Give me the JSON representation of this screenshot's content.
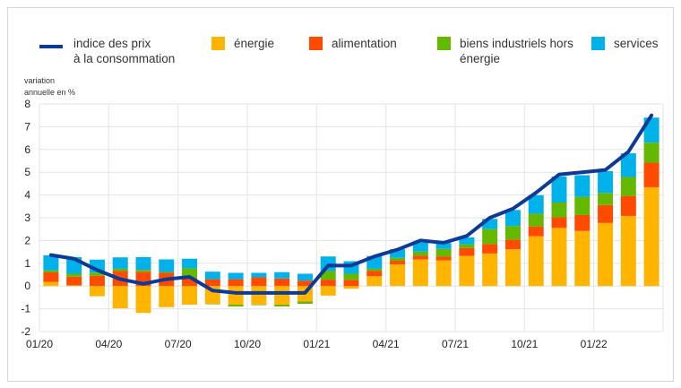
{
  "chart_data": {
    "type": "bar",
    "stacked": true,
    "title": "",
    "xlabel": "",
    "ylabel": "variation annuelle en %",
    "ylabel_lines": [
      "variation",
      "annuelle en %"
    ],
    "ylim": [
      -2,
      8
    ],
    "yticks": [
      -2,
      -1,
      0,
      1,
      2,
      3,
      4,
      5,
      6,
      7,
      8
    ],
    "grid": true,
    "legend_position": "top",
    "categories": [
      "01/20",
      "02/20",
      "03/20",
      "04/20",
      "05/20",
      "06/20",
      "07/20",
      "08/20",
      "09/20",
      "10/20",
      "11/20",
      "12/20",
      "01/21",
      "02/21",
      "03/21",
      "04/21",
      "05/21",
      "06/21",
      "07/21",
      "08/21",
      "09/21",
      "10/21",
      "11/21",
      "12/21",
      "01/22",
      "02/22",
      "03/22"
    ],
    "xtick_labels": [
      "01/20",
      "04/20",
      "07/20",
      "10/20",
      "01/21",
      "04/21",
      "07/21",
      "10/21",
      "01/22"
    ],
    "series": [
      {
        "name": "énergie",
        "color": "#ffb400",
        "values": [
          0.18,
          0.03,
          -0.45,
          -0.98,
          -1.18,
          -0.93,
          -0.82,
          -0.78,
          -0.82,
          -0.82,
          -0.82,
          -0.68,
          -0.42,
          -0.12,
          0.43,
          0.95,
          1.17,
          1.13,
          1.32,
          1.43,
          1.62,
          2.19,
          2.55,
          2.42,
          2.77,
          3.08,
          4.34
        ]
      },
      {
        "name": "alimentation",
        "color": "#ff4b00",
        "values": [
          0.42,
          0.38,
          0.45,
          0.66,
          0.63,
          0.58,
          0.36,
          0.3,
          0.3,
          0.38,
          0.33,
          0.24,
          0.28,
          0.27,
          0.23,
          0.16,
          0.16,
          0.16,
          0.35,
          0.42,
          0.42,
          0.43,
          0.47,
          0.7,
          0.79,
          0.88,
          1.08
        ]
      },
      {
        "name": "biens industriels hors énergie",
        "color": "#65b800",
        "values": [
          0.09,
          0.13,
          0.14,
          0.1,
          0.08,
          0.04,
          0.42,
          -0.02,
          -0.08,
          -0.02,
          -0.08,
          -0.1,
          0.38,
          0.27,
          0.1,
          0.13,
          0.18,
          0.34,
          0.16,
          0.65,
          0.6,
          0.56,
          0.65,
          0.8,
          0.53,
          0.83,
          0.88
        ]
      },
      {
        "name": "services",
        "color": "#00b1ea",
        "values": [
          0.66,
          0.73,
          0.57,
          0.5,
          0.56,
          0.55,
          0.42,
          0.33,
          0.28,
          0.2,
          0.28,
          0.3,
          0.64,
          0.55,
          0.56,
          0.38,
          0.4,
          0.26,
          0.31,
          0.45,
          0.7,
          0.81,
          1.14,
          0.95,
          0.96,
          1.04,
          1.1
        ]
      }
    ],
    "line": {
      "name": "indice des prix à la consommation",
      "color": "#0d3a96",
      "values": [
        1.36,
        1.2,
        0.7,
        0.3,
        0.1,
        0.3,
        0.4,
        -0.2,
        -0.3,
        -0.3,
        -0.3,
        -0.3,
        0.9,
        0.9,
        1.3,
        1.6,
        2.0,
        1.9,
        2.2,
        3.0,
        3.4,
        4.1,
        4.9,
        5.0,
        5.1,
        5.9,
        7.5
      ]
    }
  },
  "legend": {
    "hicp_line1": "indice des prix",
    "hicp_line2": "à la consommation",
    "energy": "énergie",
    "food": "alimentation",
    "goods_line1": "biens industriels hors",
    "goods_line2": "énergie",
    "services": "services"
  }
}
